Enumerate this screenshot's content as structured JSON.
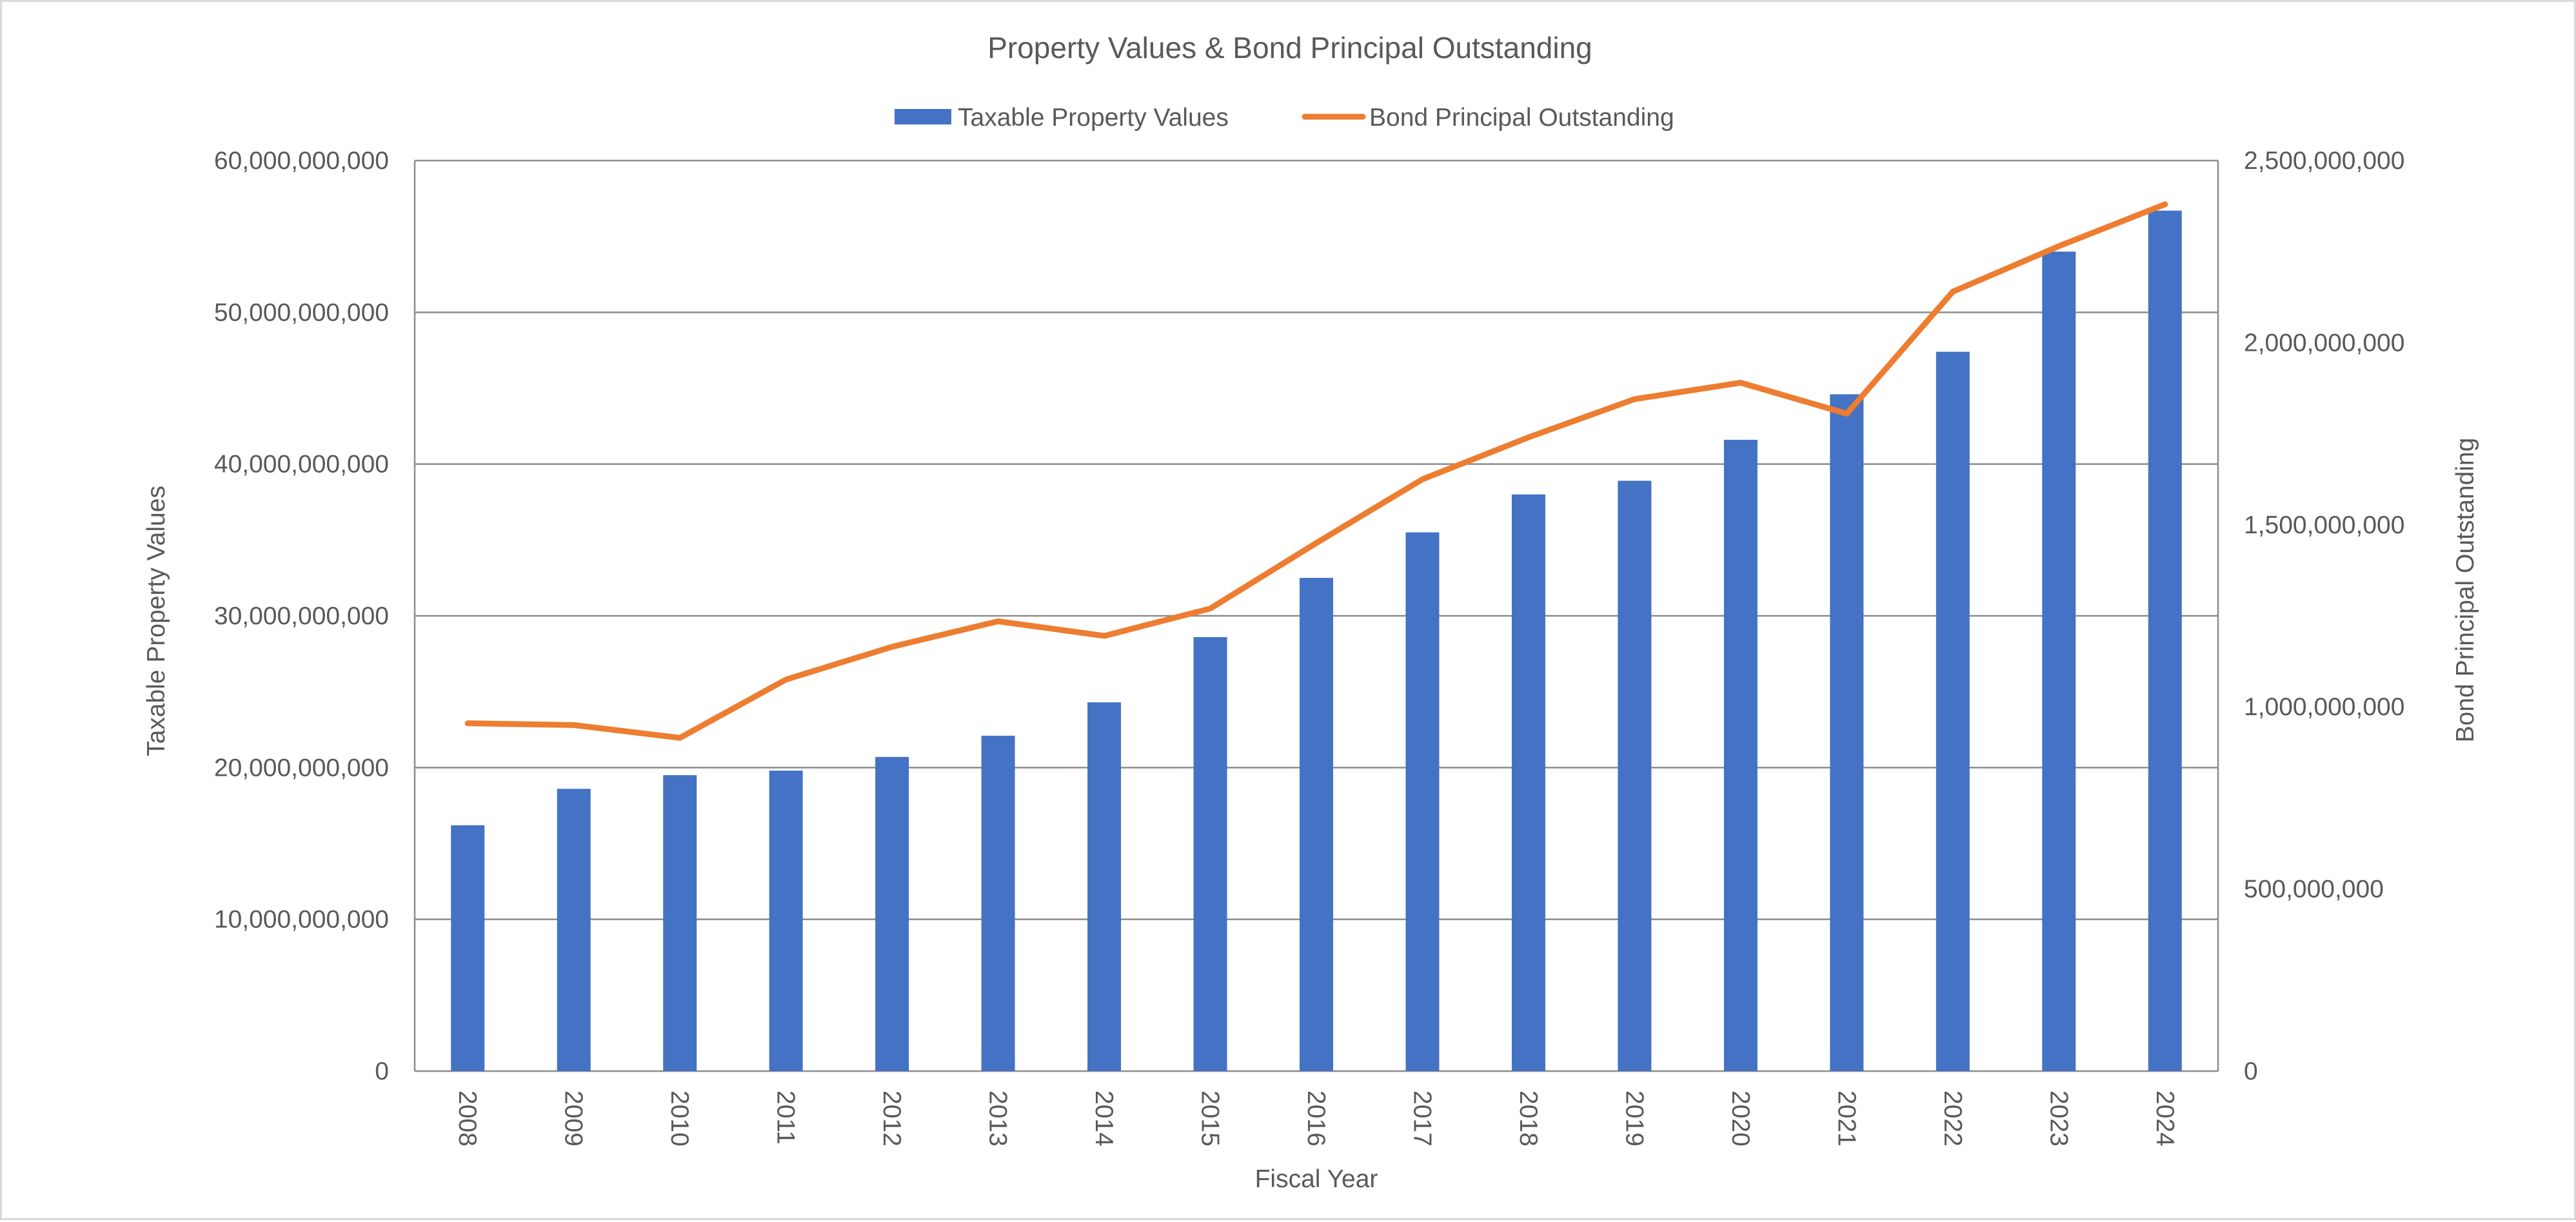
{
  "chart_data": {
    "type": "bar",
    "title": "Property Values & Bond Principal Outstanding",
    "xlabel": "Fiscal Year",
    "ylabel": "Taxable Property Values",
    "y2label": "Bond Principal Outstanding",
    "ylim": [
      0,
      60000000000
    ],
    "y2lim": [
      0,
      2500000000
    ],
    "yticks": [
      "0",
      "10,000,000,000",
      "20,000,000,000",
      "30,000,000,000",
      "40,000,000,000",
      "50,000,000,000",
      "60,000,000,000"
    ],
    "y2ticks": [
      "0",
      "500,000,000",
      "1,000,000,000",
      "1,500,000,000",
      "2,000,000,000",
      "2,500,000,000"
    ],
    "grid": true,
    "legend_position": "top",
    "categories": [
      "2008",
      "2009",
      "2010",
      "2011",
      "2012",
      "2013",
      "2014",
      "2015",
      "2016",
      "2017",
      "2018",
      "2019",
      "2020",
      "2021",
      "2022",
      "2023",
      "2024"
    ],
    "series": [
      {
        "name": "Taxable Property Values",
        "type": "bar",
        "axis": "left",
        "color": "#4472c4",
        "values": [
          16200000000,
          18600000000,
          19500000000,
          19800000000,
          20700000000,
          22100000000,
          24300000000,
          28600000000,
          32500000000,
          35500000000,
          38000000000,
          38900000000,
          41600000000,
          44600000000,
          47400000000,
          54000000000,
          56700000000
        ]
      },
      {
        "name": "Bond Principal Outstanding",
        "type": "line",
        "axis": "right",
        "color": "#ed7d31",
        "values": [
          955000000,
          950000000,
          915000000,
          1075000000,
          1165000000,
          1235000000,
          1195000000,
          1270000000,
          1450000000,
          1625000000,
          1740000000,
          1845000000,
          1890000000,
          1805000000,
          2140000000,
          2265000000,
          2380000000
        ]
      }
    ]
  }
}
